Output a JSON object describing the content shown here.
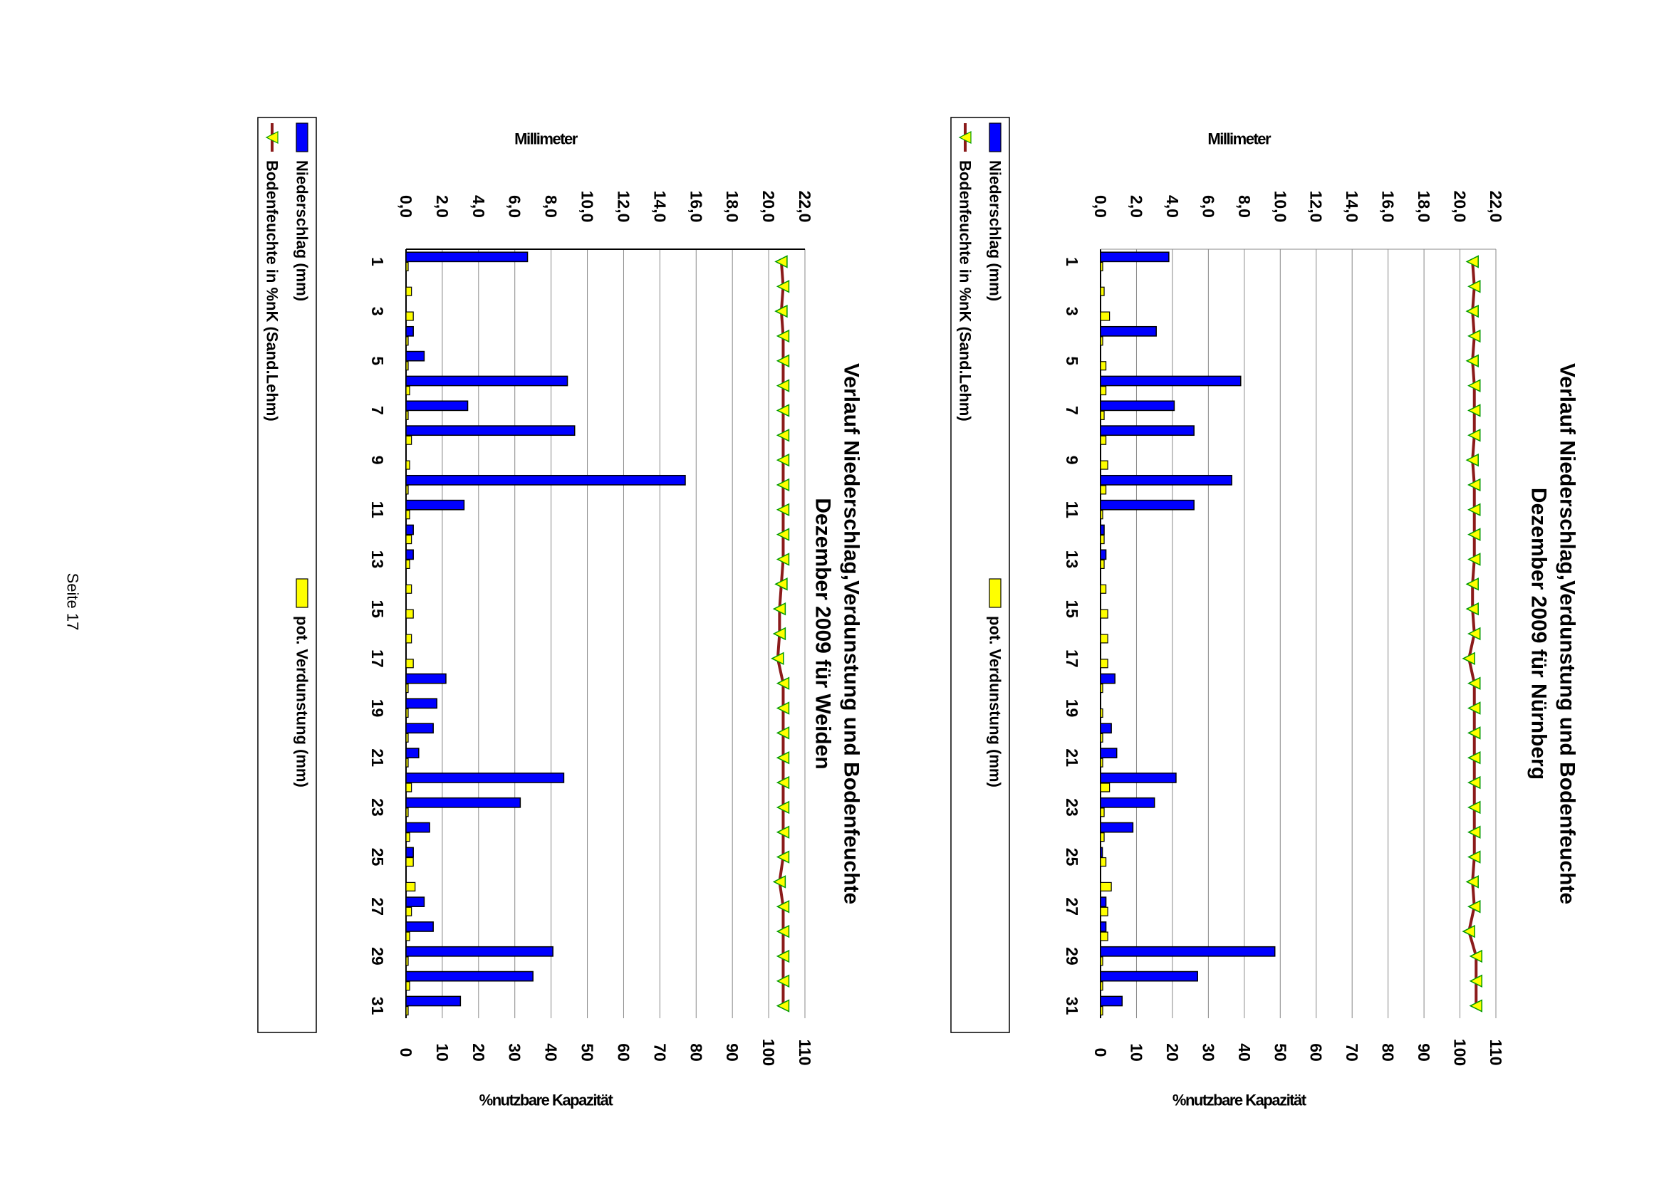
{
  "page": {
    "footer": "Seite 17"
  },
  "legend": {
    "niederschlag": "Niederschlag (mm)",
    "verdunstung": "pot. Verdunstung (mm)",
    "bodenfeuchte": "Bodenfeuchte in %nK (Sand.Lehm)"
  },
  "colors": {
    "niederschlag": "#0000ff",
    "verdunstung": "#ffff00",
    "bodenfeuchte": "#8b1a1a",
    "marker": "#ffff00",
    "marker_edge": "#009900"
  },
  "chart_data": [
    {
      "type": "bar",
      "title_line1": "Verlauf Niederschlag,Verdunstung und Bodenfeuchte",
      "title_line2": "Dezember 2009 für Nürnberg",
      "ylabel_left": "Millimeter",
      "ylabel_right": "%nutzbare Kapazität",
      "ylim_left": [
        0,
        22
      ],
      "ylim_right": [
        0,
        110
      ],
      "left_ticks": [
        "0,0",
        "2,0",
        "4,0",
        "6,0",
        "8,0",
        "10,0",
        "12,0",
        "14,0",
        "16,0",
        "18,0",
        "20,0",
        "22,0"
      ],
      "right_ticks": [
        "0",
        "10",
        "20",
        "30",
        "40",
        "50",
        "60",
        "70",
        "80",
        "90",
        "100",
        "110"
      ],
      "category_labels": [
        "1",
        "3",
        "5",
        "7",
        "9",
        "11",
        "13",
        "15",
        "17",
        "19",
        "21",
        "23",
        "25",
        "27",
        "29",
        "31"
      ],
      "days": [
        1,
        2,
        3,
        4,
        5,
        6,
        7,
        8,
        9,
        10,
        11,
        12,
        13,
        14,
        15,
        16,
        17,
        18,
        19,
        20,
        21,
        22,
        23,
        24,
        25,
        26,
        27,
        28,
        29,
        30,
        31
      ],
      "series": [
        {
          "name": "Niederschlag (mm)",
          "axis": "left",
          "values": [
            3.8,
            0,
            0,
            3.1,
            0,
            7.8,
            4.1,
            5.2,
            0,
            7.3,
            5.2,
            0.2,
            0.3,
            0,
            0,
            0,
            0,
            0.8,
            0,
            0.6,
            0.9,
            4.2,
            3.0,
            1.8,
            0.1,
            0,
            0.3,
            0.3,
            9.7,
            5.4,
            1.2
          ]
        },
        {
          "name": "pot. Verdunstung (mm)",
          "axis": "left",
          "values": [
            0.1,
            0.2,
            0.5,
            0.1,
            0.3,
            0.3,
            0.2,
            0.3,
            0.4,
            0.3,
            0.1,
            0.2,
            0.2,
            0.3,
            0.4,
            0.4,
            0.4,
            0.1,
            0.1,
            0.1,
            0.1,
            0.5,
            0.2,
            0.2,
            0.3,
            0.6,
            0.4,
            0.4,
            0.1,
            0.1,
            0.1
          ]
        },
        {
          "name": "Bodenfeuchte in %nK (Sand.Lehm)",
          "axis": "right",
          "values": [
            103.5,
            104,
            103.5,
            104,
            103.5,
            104,
            104,
            104,
            103.5,
            104,
            104,
            104,
            104,
            103.5,
            103.5,
            104,
            102.5,
            104,
            104,
            104,
            104,
            104,
            104,
            104,
            104,
            103.5,
            104,
            102.5,
            104.5,
            104.5,
            104.5
          ]
        }
      ]
    },
    {
      "type": "bar",
      "title_line1": "Verlauf Niederschlag,Verdunstung und Bodenfeuchte",
      "title_line2": "Dezember 2009 für Weiden",
      "ylabel_left": "Millimeter",
      "ylabel_right": "%nutzbare Kapazität",
      "ylim_left": [
        0,
        22
      ],
      "ylim_right": [
        0,
        110
      ],
      "left_ticks": [
        "0,0",
        "2,0",
        "4,0",
        "6,0",
        "8,0",
        "10,0",
        "12,0",
        "14,0",
        "16,0",
        "18,0",
        "20,0",
        "22,0"
      ],
      "right_ticks": [
        "0",
        "10",
        "20",
        "30",
        "40",
        "50",
        "60",
        "70",
        "80",
        "90",
        "100",
        "110"
      ],
      "category_labels": [
        "1",
        "3",
        "5",
        "7",
        "9",
        "11",
        "13",
        "15",
        "17",
        "19",
        "21",
        "23",
        "25",
        "27",
        "29",
        "31"
      ],
      "days": [
        1,
        2,
        3,
        4,
        5,
        6,
        7,
        8,
        9,
        10,
        11,
        12,
        13,
        14,
        15,
        16,
        17,
        18,
        19,
        20,
        21,
        22,
        23,
        24,
        25,
        26,
        27,
        28,
        29,
        30,
        31
      ],
      "series": [
        {
          "name": "Niederschlag (mm)",
          "axis": "left",
          "values": [
            6.7,
            0,
            0,
            0.4,
            1.0,
            8.9,
            3.4,
            9.3,
            0,
            15.4,
            3.2,
            0.4,
            0.4,
            0,
            0,
            0,
            0,
            2.2,
            1.7,
            1.5,
            0.7,
            8.7,
            6.3,
            1.3,
            0.4,
            0,
            1.0,
            1.5,
            8.1,
            7.0,
            3.0
          ]
        },
        {
          "name": "pot. Verdunstung (mm)",
          "axis": "left",
          "values": [
            0.1,
            0.3,
            0.4,
            0.1,
            0.1,
            0.2,
            0.1,
            0.3,
            0.2,
            0.1,
            0.2,
            0.3,
            0.2,
            0.3,
            0.4,
            0.3,
            0.4,
            0.1,
            0.1,
            0.1,
            0.1,
            0.3,
            0.1,
            0.2,
            0.4,
            0.5,
            0.3,
            0.2,
            0.1,
            0.2,
            0.1
          ]
        },
        {
          "name": "Bodenfeuchte in %nK (Sand.Lehm)",
          "axis": "right",
          "values": [
            103.5,
            104,
            103.5,
            104,
            104,
            104,
            104,
            104,
            104,
            104,
            104,
            104,
            104,
            103.5,
            103,
            103,
            102.5,
            104,
            104,
            104,
            104,
            104,
            104,
            104,
            104,
            103,
            104,
            104,
            104,
            104,
            104
          ]
        }
      ]
    }
  ]
}
